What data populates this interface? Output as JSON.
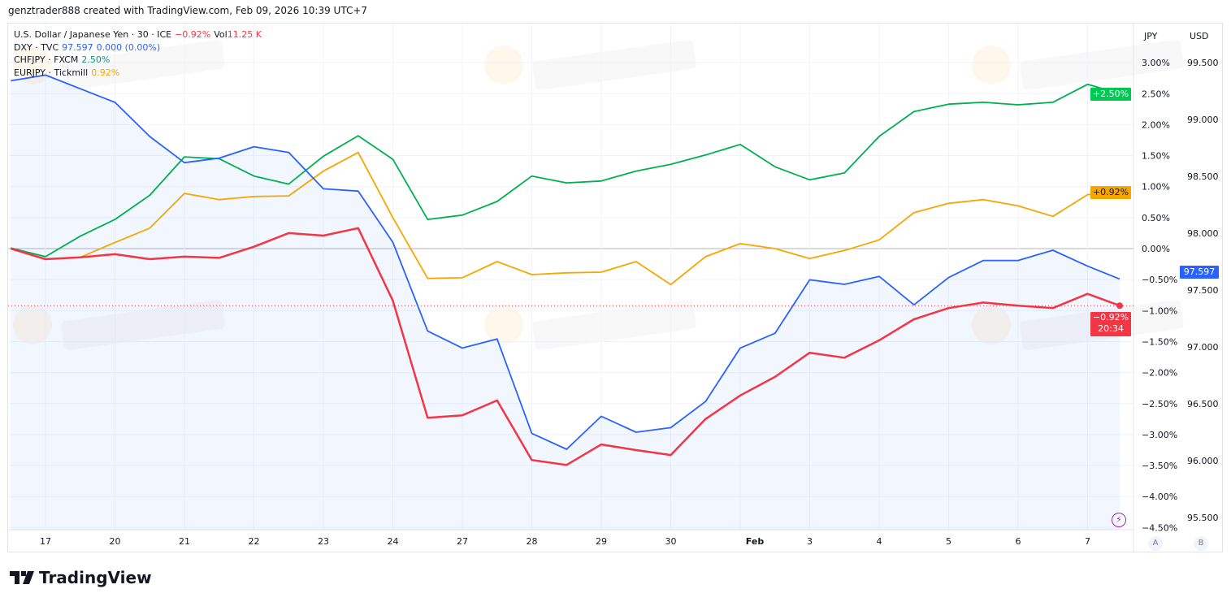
{
  "header": {
    "caption": "genztrader888 created with TradingView.com, Feb 09, 2026 10:39 UTC+7"
  },
  "legend": [
    {
      "name": "U.S. Dollar / Japanese Yen · 30 · ICE",
      "value": "−0.92%",
      "extra": "Vol",
      "extra_value": "11.25 K",
      "color": "#f23645"
    },
    {
      "name": "DXY · TVC",
      "value": "97.597",
      "extra": "0.000 (0.00%)",
      "color": "#2962ff"
    },
    {
      "name": "CHFJPY · FXCM",
      "value": "2.50%",
      "color": "#089981"
    },
    {
      "name": "EURJPY · Tickmill",
      "value": "0.92%",
      "color": "#f7a600"
    }
  ],
  "axes": {
    "left_currency": "JPY",
    "right_currency": "USD",
    "scale_a": "A",
    "scale_b": "B"
  },
  "badges": {
    "chfjpy": "+2.50%",
    "eurjpy": "+0.92%",
    "dxy": "97.597",
    "usdjpy": "−0.92%",
    "countdown": "20:34"
  },
  "footer": {
    "brand": "TradingView"
  },
  "watermark": "WikiFX",
  "chart_data": {
    "type": "line",
    "x": [
      "Jan 16 12:00",
      "Jan 17 00:00",
      "Jan 17 12:00",
      "Jan 20 00:00",
      "Jan 20 12:00",
      "Jan 21 00:00",
      "Jan 21 12:00",
      "Jan 22 00:00",
      "Jan 22 12:00",
      "Jan 23 00:00",
      "Jan 23 12:00",
      "Jan 24 00:00",
      "Jan 24 12:00",
      "Jan 27 00:00",
      "Jan 27 12:00",
      "Jan 28 00:00",
      "Jan 28 12:00",
      "Jan 29 00:00",
      "Jan 29 12:00",
      "Jan 30 00:00",
      "Jan 30 12:00",
      "Feb 2 00:00",
      "Feb 2 12:00",
      "Feb 3 00:00",
      "Feb 3 12:00",
      "Feb 4 00:00",
      "Feb 4 12:00",
      "Feb 5 00:00",
      "Feb 5 12:00",
      "Feb 6 00:00",
      "Feb 6 12:00",
      "Feb 7 00:00",
      "Feb 7 12:00"
    ],
    "x_ticks": [
      "17",
      "20",
      "21",
      "22",
      "23",
      "24",
      "27",
      "28",
      "29",
      "30",
      "Feb",
      "3",
      "4",
      "5",
      "6",
      "7"
    ],
    "y_left": {
      "label": "JPY",
      "unit": "%",
      "range": [
        -4.5,
        3.0
      ],
      "ticks": [
        "3.00%",
        "2.50%",
        "2.00%",
        "1.50%",
        "1.00%",
        "0.50%",
        "0.00%",
        "−0.50%",
        "−1.00%",
        "−1.50%",
        "−2.00%",
        "−2.50%",
        "−3.00%",
        "−3.50%",
        "−4.00%",
        "−4.50%"
      ]
    },
    "y_right": {
      "label": "USD",
      "range": [
        95.5,
        99.5
      ],
      "ticks": [
        "99.500",
        "99.000",
        "98.500",
        "98.000",
        "97.500",
        "97.000",
        "96.500",
        "96.000",
        "95.500"
      ]
    },
    "grid": true,
    "legend_position": "top-left",
    "series": [
      {
        "name": "CHFJPY · FXCM",
        "axis": "left",
        "color": "#00b050",
        "values": [
          0.01,
          -0.13,
          0.2,
          0.47,
          0.86,
          1.48,
          1.45,
          1.17,
          1.04,
          1.49,
          1.82,
          1.44,
          0.47,
          0.54,
          0.76,
          1.17,
          1.06,
          1.09,
          1.25,
          1.36,
          1.51,
          1.68,
          1.32,
          1.11,
          1.22,
          1.81,
          2.21,
          2.33,
          2.36,
          2.32,
          2.36,
          2.65,
          2.5
        ]
      },
      {
        "name": "EURJPY · Tickmill",
        "axis": "left",
        "color": "#f7a600",
        "values": [
          0.0,
          -0.17,
          -0.14,
          0.1,
          0.33,
          0.89,
          0.79,
          0.84,
          0.85,
          1.25,
          1.55,
          0.5,
          -0.48,
          -0.47,
          -0.21,
          -0.42,
          -0.39,
          -0.38,
          -0.21,
          -0.58,
          -0.13,
          0.08,
          0.0,
          -0.16,
          -0.03,
          0.14,
          0.58,
          0.73,
          0.79,
          0.69,
          0.52,
          0.87,
          0.92
        ]
      },
      {
        "name": "U.S. Dollar / Japanese Yen",
        "axis": "left",
        "color": "#f23645",
        "values": [
          0.0,
          -0.17,
          -0.14,
          -0.09,
          -0.17,
          -0.13,
          -0.15,
          0.03,
          0.25,
          0.21,
          0.33,
          -0.84,
          -2.73,
          -2.69,
          -2.45,
          -3.41,
          -3.49,
          -3.16,
          -3.25,
          -3.33,
          -2.75,
          -2.37,
          -2.07,
          -1.68,
          -1.76,
          -1.48,
          -1.14,
          -0.96,
          -0.87,
          -0.92,
          -0.96,
          -0.73,
          -0.92
        ]
      },
      {
        "name": "DXY · TVC",
        "axis": "right",
        "color": "#2962ff",
        "area": true,
        "values": [
          99.34,
          99.39,
          99.27,
          99.15,
          98.85,
          98.62,
          98.66,
          98.76,
          98.71,
          98.39,
          98.37,
          97.92,
          97.14,
          96.99,
          97.07,
          96.24,
          96.1,
          96.39,
          96.25,
          96.29,
          96.52,
          96.99,
          97.12,
          97.59,
          97.55,
          97.62,
          97.37,
          97.61,
          97.76,
          97.76,
          97.85,
          97.71,
          97.597
        ]
      }
    ]
  }
}
